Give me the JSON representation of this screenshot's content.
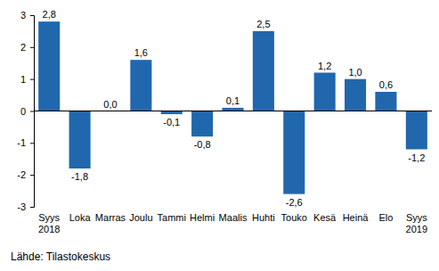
{
  "chart_data": {
    "type": "bar",
    "categories": [
      "Syys 2018",
      "Loka",
      "Marras",
      "Joulu",
      "Tammi",
      "Helmi",
      "Maalis",
      "Huhti",
      "Touko",
      "Kesä",
      "Heinä",
      "Elo",
      "Syys 2019"
    ],
    "values": [
      2.8,
      -1.8,
      0.0,
      1.6,
      -0.1,
      -0.8,
      0.1,
      2.5,
      -2.6,
      1.2,
      1.0,
      0.6,
      -1.2
    ],
    "value_labels": [
      "2,8",
      "-1,8",
      "0,0",
      "1,6",
      "-0,1",
      "-0,8",
      "0,1",
      "2,5",
      "-2,6",
      "1,2",
      "1,0",
      "0,6",
      "-1,2"
    ],
    "color": "#2167ad",
    "ylim": [
      -3,
      3
    ],
    "yticks": [
      -3,
      -2,
      -1,
      0,
      1,
      2,
      3
    ],
    "grid": false,
    "data_labels": true,
    "source": "Lähde: Tilastokeskus"
  }
}
